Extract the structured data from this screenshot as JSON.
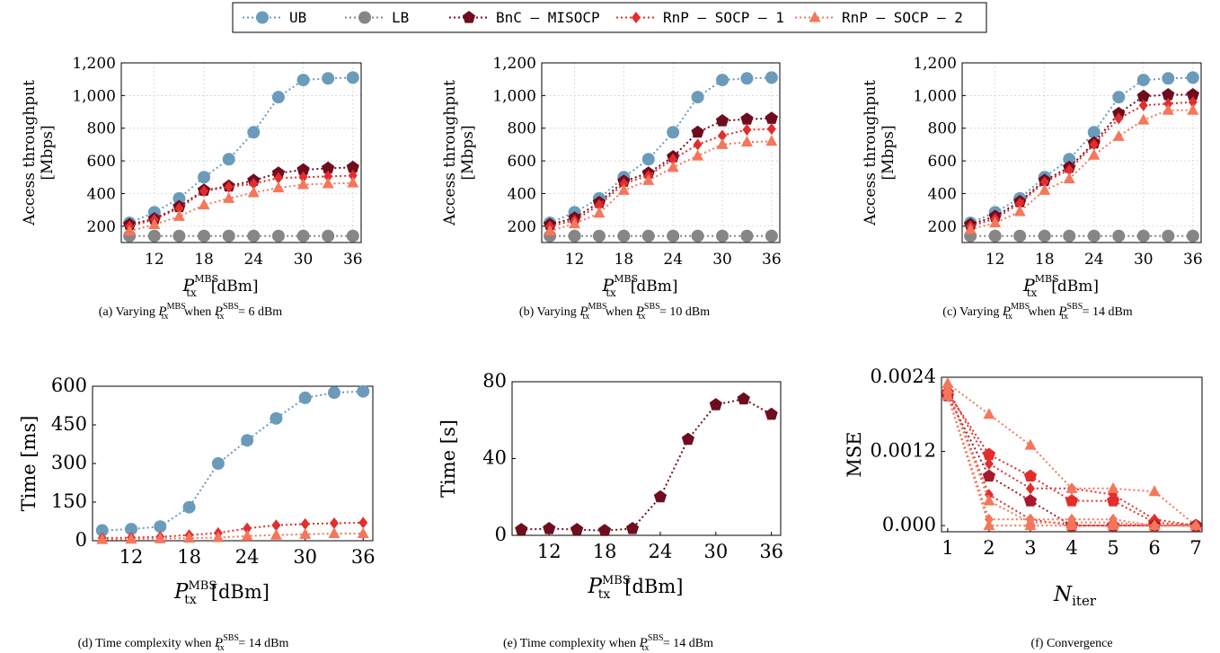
{
  "legend": [
    {
      "label": "UB",
      "color": "#6a9bbb",
      "marker": "circle"
    },
    {
      "label": "LB",
      "color": "#868686",
      "marker": "circle"
    },
    {
      "label": "BnC — MISOCP",
      "color": "#6e0d1e",
      "marker": "pentagon"
    },
    {
      "label": "RnP — SOCP — 1",
      "color": "#e32d2d",
      "marker": "diamond"
    },
    {
      "label": "RnP — SOCP — 2",
      "color": "#f5765a",
      "marker": "triangle"
    }
  ],
  "captions": {
    "a": {
      "prefix": "(a) Varying",
      "mid": "when",
      "suffix": "= 6 dBm"
    },
    "b": {
      "prefix": "(b) Varying",
      "mid": "when",
      "suffix": "= 10 dBm"
    },
    "c": {
      "prefix": "(c) Varying",
      "mid": "when",
      "suffix": "= 14 dBm"
    },
    "d": {
      "prefix": "(d) Time complexity when",
      "suffix": "= 14 dBm"
    },
    "e": {
      "prefix": "(e) Time complexity when",
      "suffix": "= 14 dBm"
    },
    "f": {
      "prefix": "(f) Convergence"
    }
  },
  "math": {
    "P": "P",
    "tx": "tx",
    "MBS": "MBS",
    "SBS": "SBS",
    "dBm": "[dBm]",
    "N": "N",
    "iter": "iter"
  },
  "chart_data": [
    {
      "id": "a",
      "type": "line",
      "ylabel": "Access throughput [Mbps]",
      "x": [
        9,
        12,
        15,
        18,
        21,
        24,
        27,
        30,
        33,
        36
      ],
      "xticks": [
        12,
        18,
        24,
        30,
        36
      ],
      "yticks": [
        200,
        400,
        600,
        800,
        1000,
        1200
      ],
      "yticklabels": [
        "200",
        "400",
        "600",
        "800",
        "1,000",
        "1,200"
      ],
      "xlim": [
        8,
        37
      ],
      "ylim": [
        100,
        1200
      ],
      "grid": true,
      "series": [
        {
          "name": "UB",
          "values": [
            220,
            285,
            370,
            500,
            610,
            775,
            990,
            1095,
            1105,
            1110
          ]
        },
        {
          "name": "LB",
          "values": [
            140,
            140,
            140,
            140,
            140,
            140,
            140,
            140,
            140,
            140
          ]
        },
        {
          "name": "BnC — MISOCP",
          "values": [
            210,
            245,
            320,
            420,
            445,
            480,
            525,
            545,
            555,
            560
          ]
        },
        {
          "name": "RnP — SOCP — 1",
          "values": [
            200,
            240,
            310,
            415,
            440,
            460,
            495,
            500,
            505,
            510
          ]
        },
        {
          "name": "RnP — SOCP — 2",
          "values": [
            170,
            210,
            260,
            330,
            370,
            405,
            435,
            455,
            460,
            465
          ]
        }
      ]
    },
    {
      "id": "b",
      "type": "line",
      "ylabel": "Access throughput [Mbps]",
      "x": [
        9,
        12,
        15,
        18,
        21,
        24,
        27,
        30,
        33,
        36
      ],
      "xticks": [
        12,
        18,
        24,
        30,
        36
      ],
      "yticks": [
        200,
        400,
        600,
        800,
        1000,
        1200
      ],
      "yticklabels": [
        "200",
        "400",
        "600",
        "800",
        "1,000",
        "1,200"
      ],
      "xlim": [
        8,
        37
      ],
      "ylim": [
        100,
        1200
      ],
      "grid": true,
      "series": [
        {
          "name": "UB",
          "values": [
            220,
            285,
            370,
            500,
            610,
            775,
            990,
            1095,
            1105,
            1110
          ]
        },
        {
          "name": "LB",
          "values": [
            140,
            140,
            140,
            140,
            140,
            140,
            140,
            140,
            140,
            140
          ]
        },
        {
          "name": "BnC — MISOCP",
          "values": [
            210,
            250,
            345,
            475,
            525,
            625,
            775,
            845,
            855,
            860
          ]
        },
        {
          "name": "RnP — SOCP — 1",
          "values": [
            200,
            235,
            330,
            460,
            510,
            610,
            700,
            755,
            790,
            795
          ]
        },
        {
          "name": "RnP — SOCP — 2",
          "values": [
            170,
            215,
            280,
            420,
            480,
            560,
            630,
            700,
            715,
            720
          ]
        }
      ]
    },
    {
      "id": "c",
      "type": "line",
      "ylabel": "Access throughput [Mbps]",
      "x": [
        9,
        12,
        15,
        18,
        21,
        24,
        27,
        30,
        33,
        36
      ],
      "xticks": [
        12,
        18,
        24,
        30,
        36
      ],
      "yticks": [
        200,
        400,
        600,
        800,
        1000,
        1200
      ],
      "yticklabels": [
        "200",
        "400",
        "600",
        "800",
        "1,000",
        "1,200"
      ],
      "xlim": [
        8,
        37
      ],
      "ylim": [
        100,
        1200
      ],
      "grid": true,
      "series": [
        {
          "name": "UB",
          "values": [
            220,
            285,
            370,
            500,
            610,
            775,
            990,
            1095,
            1105,
            1110
          ]
        },
        {
          "name": "LB",
          "values": [
            140,
            140,
            140,
            140,
            140,
            140,
            140,
            140,
            140,
            140
          ]
        },
        {
          "name": "BnC — MISOCP",
          "values": [
            210,
            260,
            350,
            480,
            560,
            710,
            890,
            995,
            1005,
            1005
          ]
        },
        {
          "name": "RnP — SOCP — 1",
          "values": [
            200,
            245,
            340,
            470,
            545,
            700,
            860,
            940,
            950,
            960
          ]
        },
        {
          "name": "RnP — SOCP — 2",
          "values": [
            180,
            220,
            290,
            420,
            490,
            635,
            750,
            850,
            910,
            910
          ]
        }
      ]
    },
    {
      "id": "d",
      "type": "line",
      "ylabel": "Time [ms]",
      "x": [
        9,
        12,
        15,
        18,
        21,
        24,
        27,
        30,
        33,
        36
      ],
      "xticks": [
        12,
        18,
        24,
        30,
        36
      ],
      "yticks": [
        0,
        150,
        300,
        450,
        600
      ],
      "yticklabels": [
        "0",
        "150",
        "300",
        "450",
        "600"
      ],
      "xlim": [
        8,
        37
      ],
      "ylim": [
        0,
        600
      ],
      "grid": false,
      "series": [
        {
          "name": "UB",
          "values": [
            40,
            45,
            55,
            130,
            300,
            390,
            475,
            555,
            575,
            580
          ]
        },
        {
          "name": "RnP — SOCP — 1",
          "values": [
            10,
            12,
            15,
            22,
            30,
            48,
            60,
            65,
            68,
            70
          ]
        },
        {
          "name": "RnP — SOCP — 2",
          "values": [
            5,
            6,
            8,
            10,
            12,
            18,
            22,
            25,
            28,
            28
          ]
        }
      ]
    },
    {
      "id": "e",
      "type": "line",
      "ylabel": "Time [s]",
      "x": [
        9,
        12,
        15,
        18,
        21,
        24,
        27,
        30,
        33,
        36
      ],
      "xticks": [
        12,
        18,
        24,
        30,
        36
      ],
      "yticks": [
        0,
        40,
        80
      ],
      "yticklabels": [
        "0",
        "40",
        "80"
      ],
      "xlim": [
        8,
        37
      ],
      "ylim": [
        0,
        80
      ],
      "grid": false,
      "series": [
        {
          "name": "BnC — MISOCP",
          "values": [
            3,
            3.5,
            3,
            2.5,
            3.5,
            20,
            50,
            68,
            71,
            63
          ]
        }
      ]
    },
    {
      "id": "f",
      "type": "line",
      "ylabel": "MSE",
      "x": [
        1,
        2,
        3,
        4,
        5,
        6,
        7
      ],
      "xticks": [
        1,
        2,
        3,
        4,
        5,
        6,
        7
      ],
      "yticks": [
        0,
        0.0012,
        0.0024
      ],
      "yticklabels": [
        "0.000",
        "0.0012",
        "0.0024"
      ],
      "xlim": [
        0.85,
        7.15
      ],
      "ylim": [
        -0.0001,
        0.0024
      ],
      "grid": false,
      "series": [
        {
          "values": [
            0.00215,
            0.00115,
            0.0008,
            0.0004,
            0.0004,
            5e-05,
            0.0
          ]
        },
        {
          "values": [
            0.0022,
            0.001,
            0.0006,
            0.0006,
            0.0005,
            0.0001,
            0.0
          ]
        },
        {
          "values": [
            0.0021,
            0.0008,
            0.0004,
            0.0,
            0.0,
            0.0,
            0.0
          ]
        },
        {
          "values": [
            0.0022,
            0.0005,
            0.0001,
            0.0,
            0.0,
            0.0,
            0.0
          ]
        },
        {
          "values": [
            0.0021,
            0.0,
            0.0,
            0.0,
            0.0,
            0.0,
            0.0
          ]
        },
        {
          "values": [
            0.0023,
            0.0018,
            0.0013,
            0.0006,
            0.0006,
            0.00055,
            0.0
          ]
        },
        {
          "values": [
            0.0022,
            0.0004,
            5e-05,
            5e-05,
            5e-05,
            0.0,
            0.0
          ]
        },
        {
          "values": [
            0.0021,
            0.0001,
            0.0001,
            0.0001,
            0.0001,
            0.0,
            0.0
          ]
        }
      ]
    }
  ]
}
